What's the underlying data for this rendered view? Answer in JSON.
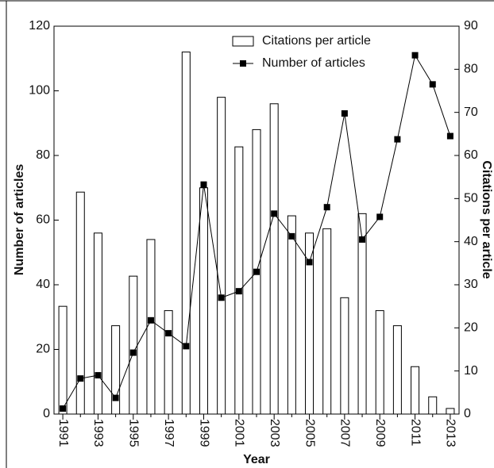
{
  "chart_data": {
    "type": "bar",
    "xlabel": "Year",
    "ylabel": "Number of articles",
    "y2label": "Citations per article",
    "categories": [
      "1991",
      null,
      "1993",
      null,
      "1995",
      null,
      "1997",
      null,
      "1999",
      null,
      "2001",
      null,
      "2003",
      null,
      "2005",
      null,
      "2007",
      null,
      "2009",
      null,
      "2011",
      null,
      "2013"
    ],
    "series": [
      {
        "name": "Citations per article",
        "type": "bar",
        "axis": "y2",
        "color": "#ffffff",
        "values": [
          25,
          51.5,
          42,
          20.5,
          32,
          40.5,
          24,
          84,
          52.5,
          73.5,
          62,
          66,
          72,
          46,
          42,
          43,
          27,
          46.5,
          24,
          20.5,
          11,
          4,
          1.3
        ]
      },
      {
        "name": "Number of articles",
        "type": "line",
        "color": "#000000",
        "values": [
          1.7,
          11,
          12,
          5,
          19,
          29,
          25,
          21,
          71,
          36,
          38,
          44,
          62,
          55,
          47,
          64,
          93,
          54,
          61,
          85,
          111,
          102,
          86
        ]
      }
    ],
    "ylim": [
      0,
      120
    ],
    "yticks": [
      0,
      20,
      40,
      60,
      80,
      100,
      120
    ],
    "y2lim": [
      0,
      90
    ],
    "y2ticks": [
      0,
      10,
      20,
      30,
      40,
      50,
      60,
      70,
      80,
      90
    ],
    "legend": "top"
  }
}
